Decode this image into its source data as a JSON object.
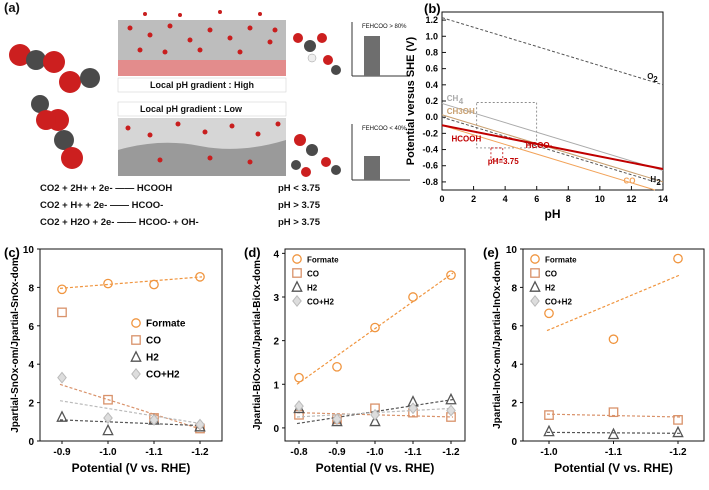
{
  "panel_a": {
    "label": "(a)",
    "high_text": "Local pH gradient : High",
    "low_text": "Local pH gradient : Low",
    "fe_high": "FEHCOO > 80%",
    "fe_low": "FEHCOO < 40%",
    "equations": [
      {
        "lhs": "CO2 + 2H+ + 2e- —— HCOOH",
        "cond": "pH < 3.75"
      },
      {
        "lhs": "CO2 + H+ + 2e- —— HCOO-",
        "cond": "pH > 3.75"
      },
      {
        "lhs": "CO2 + H2O + 2e- —— HCOO- + OH-",
        "cond": "pH > 3.75"
      }
    ]
  },
  "chart_data": [
    {
      "panel": "(b)",
      "type": "line",
      "title": "",
      "xlabel": "pH",
      "ylabel": "Potential versus SHE (V)",
      "xlim": [
        0,
        14
      ],
      "ylim": [
        -0.9,
        1.3
      ],
      "xticks": [
        0,
        2,
        4,
        6,
        8,
        10,
        12,
        14
      ],
      "yticks": [
        -0.8,
        -0.6,
        -0.4,
        -0.2,
        0.0,
        0.2,
        0.4,
        0.6,
        0.8,
        1.0,
        1.2
      ],
      "series": [
        {
          "name": "O2",
          "color": "#555555",
          "dash": true,
          "x": [
            0,
            14
          ],
          "y": [
            1.23,
            0.4
          ]
        },
        {
          "name": "H2",
          "color": "#555555",
          "dash": true,
          "x": [
            0,
            14
          ],
          "y": [
            0.0,
            -0.83
          ]
        },
        {
          "name": "CH4",
          "color": "#aaaaaa",
          "dash": false,
          "x": [
            0,
            14
          ],
          "y": [
            0.17,
            -0.66
          ]
        },
        {
          "name": "CH3OH",
          "color": "#c9a070",
          "dash": false,
          "x": [
            0,
            14
          ],
          "y": [
            0.03,
            -0.8
          ]
        },
        {
          "name": "CO",
          "color": "#f2a35a",
          "dash": false,
          "x": [
            0,
            14
          ],
          "y": [
            -0.1,
            -0.93
          ]
        },
        {
          "name": "HCOOH",
          "color": "#c00000",
          "dash": false,
          "x": [
            0,
            14
          ],
          "y": [
            -0.1,
            -0.64
          ]
        }
      ],
      "annotations": {
        "pH_label": "pH=3.75",
        "hcoo_label": "HCOO-"
      }
    },
    {
      "panel": "(c)",
      "type": "scatter",
      "xlabel": "Potential (V vs. RHE)",
      "ylabel": "Jpartial-SnOx-om/Jpartial-SnOx-dom",
      "categories": [
        "-0.9",
        "-1.0",
        "-1.1",
        "-1.2"
      ],
      "ylim": [
        0,
        10
      ],
      "yticks": [
        0,
        2,
        4,
        6,
        8,
        10
      ],
      "series": [
        {
          "name": "Formate",
          "marker": "circle",
          "color": "#f0953f",
          "values": [
            7.9,
            8.2,
            8.15,
            8.55
          ],
          "fit": [
            7.95,
            8.55
          ]
        },
        {
          "name": "CO",
          "marker": "square",
          "color": "#d9926a",
          "values": [
            6.7,
            2.15,
            1.2,
            0.65
          ],
          "fit": [
            2.95,
            0.6
          ]
        },
        {
          "name": "H2",
          "marker": "triangle",
          "color": "#555555",
          "values": [
            1.25,
            0.55,
            1.1,
            0.75
          ],
          "fit": [
            1.1,
            0.8
          ]
        },
        {
          "name": "CO+H2",
          "marker": "diamond",
          "color": "#bbbbbb",
          "values": [
            3.3,
            1.2,
            1.1,
            0.85
          ],
          "fit": [
            2.1,
            0.9
          ]
        }
      ]
    },
    {
      "panel": "(d)",
      "type": "scatter",
      "xlabel": "Potential (V vs. RHE)",
      "ylabel": "Jpartial-BiOx-om/Jpartial-BiOx-dom",
      "categories": [
        "-0.8",
        "-0.9",
        "-1.0",
        "-1.1",
        "-1.2"
      ],
      "ylim": [
        -0.3,
        4.1
      ],
      "yticks": [
        0,
        1,
        2,
        3,
        4
      ],
      "series": [
        {
          "name": "Formate",
          "marker": "circle",
          "color": "#f0953f",
          "values": [
            1.15,
            1.4,
            2.3,
            3.0,
            3.5
          ],
          "fit": [
            1.0,
            3.55
          ]
        },
        {
          "name": "CO",
          "marker": "square",
          "color": "#d9926a",
          "values": [
            0.3,
            0.2,
            0.45,
            0.35,
            0.25
          ],
          "fit": [
            0.35,
            0.25
          ]
        },
        {
          "name": "H2",
          "marker": "triangle",
          "color": "#555555",
          "values": [
            0.45,
            0.15,
            0.15,
            0.6,
            0.65
          ],
          "fit": [
            0.1,
            0.65
          ]
        },
        {
          "name": "CO+H2",
          "marker": "diamond",
          "color": "#bbbbbb",
          "values": [
            0.5,
            0.2,
            0.3,
            0.45,
            0.4
          ],
          "fit": [
            0.25,
            0.45
          ]
        }
      ]
    },
    {
      "panel": "(e)",
      "type": "scatter",
      "xlabel": "Potential (V vs. RHE)",
      "ylabel": "Jpartial-InOx-om/Jpartial-InOx-dom",
      "categories": [
        "-1.0",
        "-1.1",
        "-1.2"
      ],
      "ylim": [
        0,
        10
      ],
      "yticks": [
        0,
        2,
        4,
        6,
        8,
        10
      ],
      "series": [
        {
          "name": "Formate",
          "marker": "circle",
          "color": "#f0953f",
          "values": [
            6.65,
            5.3,
            9.5
          ],
          "fit": [
            5.75,
            8.65
          ]
        },
        {
          "name": "CO",
          "marker": "square",
          "color": "#d9926a",
          "values": [
            1.35,
            1.5,
            1.1
          ],
          "fit": [
            1.4,
            1.25
          ]
        },
        {
          "name": "H2",
          "marker": "triangle",
          "color": "#555555",
          "values": [
            0.5,
            0.35,
            0.45
          ],
          "fit": [
            0.45,
            0.4
          ]
        },
        {
          "name": "CO+H2",
          "marker": "diamond",
          "color": "#bbbbbb",
          "values": [],
          "fit": []
        }
      ]
    }
  ]
}
